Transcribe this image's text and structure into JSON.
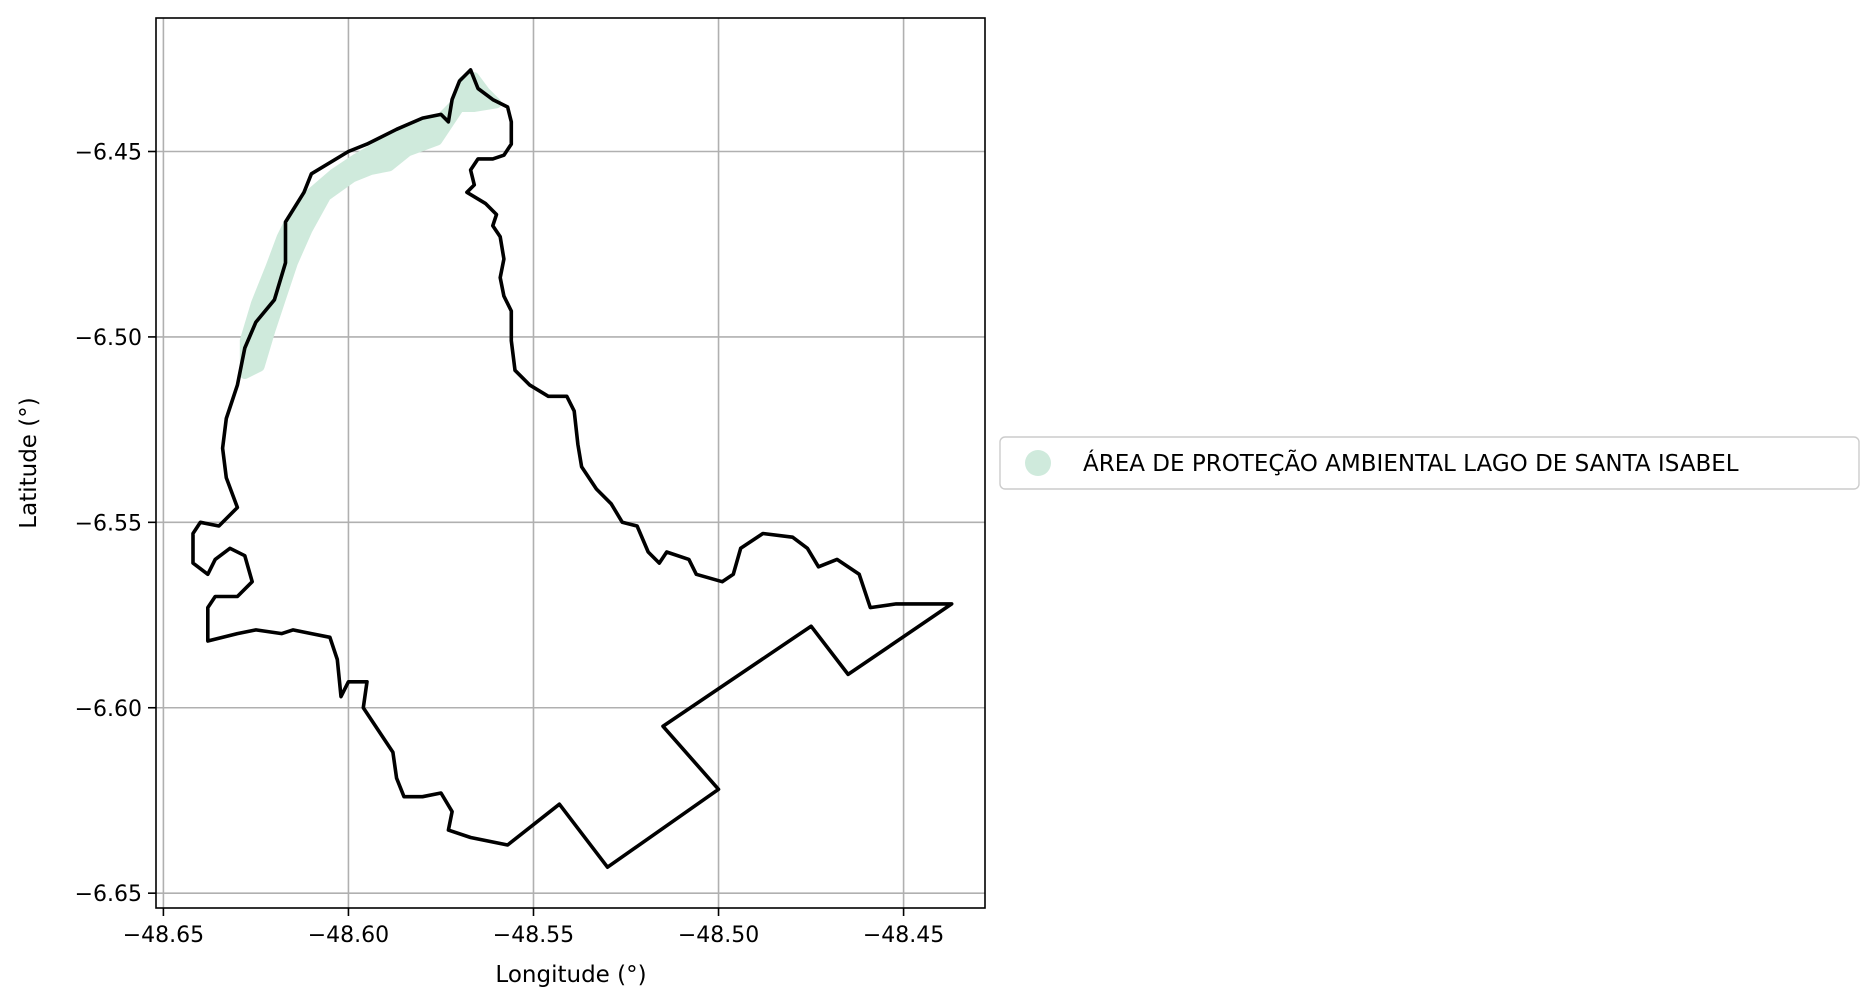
{
  "chart_data": {
    "type": "map",
    "xlabel": "Longitude (°)",
    "ylabel": "Latitude (°)",
    "xlim": [
      -48.652,
      -48.428
    ],
    "ylim": [
      -6.654,
      -6.414
    ],
    "x_ticks": [
      -48.65,
      -48.6,
      -48.55,
      -48.5,
      -48.45
    ],
    "x_tick_labels": [
      "−48.65",
      "−48.60",
      "−48.55",
      "−48.50",
      "−48.45"
    ],
    "y_ticks": [
      -6.45,
      -6.5,
      -6.55,
      -6.6,
      -6.65
    ],
    "y_tick_labels": [
      "−6.45",
      "−6.50",
      "−6.55",
      "−6.60",
      "−6.65"
    ],
    "grid": true,
    "legend": {
      "placement": "right",
      "entries": [
        {
          "label": "ÁREA DE PROTEÇÃO AMBIENTAL LAGO DE SANTA ISABEL",
          "color": "#cfeadc",
          "marker": "circle"
        }
      ]
    },
    "boundary": {
      "color": "#000000",
      "coordinates": [
        [
          -48.61,
          -6.456
        ],
        [
          -48.6,
          -6.45
        ],
        [
          -48.595,
          -6.448
        ],
        [
          -48.587,
          -6.444
        ],
        [
          -48.58,
          -6.441
        ],
        [
          -48.575,
          -6.44
        ],
        [
          -48.573,
          -6.442
        ],
        [
          -48.572,
          -6.436
        ],
        [
          -48.57,
          -6.431
        ],
        [
          -48.567,
          -6.428
        ],
        [
          -48.565,
          -6.433
        ],
        [
          -48.561,
          -6.436
        ],
        [
          -48.557,
          -6.438
        ],
        [
          -48.556,
          -6.442
        ],
        [
          -48.556,
          -6.448
        ],
        [
          -48.558,
          -6.451
        ],
        [
          -48.561,
          -6.452
        ],
        [
          -48.565,
          -6.452
        ],
        [
          -48.567,
          -6.455
        ],
        [
          -48.566,
          -6.459
        ],
        [
          -48.568,
          -6.461
        ],
        [
          -48.563,
          -6.464
        ],
        [
          -48.56,
          -6.467
        ],
        [
          -48.561,
          -6.47
        ],
        [
          -48.559,
          -6.473
        ],
        [
          -48.558,
          -6.479
        ],
        [
          -48.559,
          -6.484
        ],
        [
          -48.558,
          -6.489
        ],
        [
          -48.556,
          -6.493
        ],
        [
          -48.556,
          -6.501
        ],
        [
          -48.555,
          -6.509
        ],
        [
          -48.551,
          -6.513
        ],
        [
          -48.546,
          -6.516
        ],
        [
          -48.541,
          -6.516
        ],
        [
          -48.539,
          -6.52
        ],
        [
          -48.538,
          -6.529
        ],
        [
          -48.537,
          -6.535
        ],
        [
          -48.533,
          -6.541
        ],
        [
          -48.529,
          -6.545
        ],
        [
          -48.526,
          -6.55
        ],
        [
          -48.522,
          -6.551
        ],
        [
          -48.519,
          -6.558
        ],
        [
          -48.516,
          -6.561
        ],
        [
          -48.514,
          -6.558
        ],
        [
          -48.508,
          -6.56
        ],
        [
          -48.506,
          -6.564
        ],
        [
          -48.499,
          -6.566
        ],
        [
          -48.496,
          -6.564
        ],
        [
          -48.494,
          -6.557
        ],
        [
          -48.488,
          -6.553
        ],
        [
          -48.48,
          -6.554
        ],
        [
          -48.476,
          -6.557
        ],
        [
          -48.473,
          -6.562
        ],
        [
          -48.468,
          -6.56
        ],
        [
          -48.462,
          -6.564
        ],
        [
          -48.459,
          -6.573
        ],
        [
          -48.452,
          -6.572
        ],
        [
          -48.445,
          -6.572
        ],
        [
          -48.437,
          -6.572
        ],
        [
          -48.465,
          -6.591
        ],
        [
          -48.475,
          -6.578
        ],
        [
          -48.515,
          -6.605
        ],
        [
          -48.5,
          -6.622
        ],
        [
          -48.53,
          -6.643
        ],
        [
          -48.543,
          -6.626
        ],
        [
          -48.557,
          -6.637
        ],
        [
          -48.567,
          -6.635
        ],
        [
          -48.573,
          -6.633
        ],
        [
          -48.572,
          -6.628
        ],
        [
          -48.575,
          -6.623
        ],
        [
          -48.58,
          -6.624
        ],
        [
          -48.585,
          -6.624
        ],
        [
          -48.587,
          -6.619
        ],
        [
          -48.588,
          -6.612
        ],
        [
          -48.592,
          -6.606
        ],
        [
          -48.596,
          -6.6
        ],
        [
          -48.595,
          -6.593
        ],
        [
          -48.6,
          -6.593
        ],
        [
          -48.602,
          -6.597
        ],
        [
          -48.603,
          -6.587
        ],
        [
          -48.605,
          -6.581
        ],
        [
          -48.61,
          -6.58
        ],
        [
          -48.615,
          -6.579
        ],
        [
          -48.618,
          -6.58
        ],
        [
          -48.625,
          -6.579
        ],
        [
          -48.63,
          -6.58
        ],
        [
          -48.638,
          -6.582
        ],
        [
          -48.638,
          -6.573
        ],
        [
          -48.636,
          -6.57
        ],
        [
          -48.63,
          -6.57
        ],
        [
          -48.626,
          -6.566
        ],
        [
          -48.628,
          -6.559
        ],
        [
          -48.632,
          -6.557
        ],
        [
          -48.636,
          -6.56
        ],
        [
          -48.638,
          -6.564
        ],
        [
          -48.642,
          -6.561
        ],
        [
          -48.642,
          -6.553
        ],
        [
          -48.64,
          -6.55
        ],
        [
          -48.635,
          -6.551
        ],
        [
          -48.63,
          -6.546
        ],
        [
          -48.633,
          -6.538
        ],
        [
          -48.634,
          -6.53
        ],
        [
          -48.633,
          -6.522
        ],
        [
          -48.63,
          -6.513
        ],
        [
          -48.628,
          -6.503
        ],
        [
          -48.625,
          -6.496
        ],
        [
          -48.62,
          -6.49
        ],
        [
          -48.617,
          -6.48
        ],
        [
          -48.617,
          -6.469
        ],
        [
          -48.612,
          -6.461
        ],
        [
          -48.61,
          -6.456
        ]
      ]
    },
    "protected_area": {
      "color": "#cfeadc",
      "coordinates": [
        [
          -48.616,
          -6.469
        ],
        [
          -48.611,
          -6.462
        ],
        [
          -48.604,
          -6.456
        ],
        [
          -48.598,
          -6.452
        ],
        [
          -48.591,
          -6.448
        ],
        [
          -48.583,
          -6.444
        ],
        [
          -48.575,
          -6.441
        ],
        [
          -48.571,
          -6.437
        ],
        [
          -48.569,
          -6.431
        ],
        [
          -48.566,
          -6.43
        ],
        [
          -48.563,
          -6.434
        ],
        [
          -48.56,
          -6.437
        ],
        [
          -48.566,
          -6.438
        ],
        [
          -48.57,
          -6.438
        ],
        [
          -48.572,
          -6.441
        ],
        [
          -48.576,
          -6.447
        ],
        [
          -48.584,
          -6.45
        ],
        [
          -48.589,
          -6.454
        ],
        [
          -48.594,
          -6.455
        ],
        [
          -48.599,
          -6.457
        ],
        [
          -48.606,
          -6.462
        ],
        [
          -48.611,
          -6.471
        ],
        [
          -48.615,
          -6.48
        ],
        [
          -48.618,
          -6.489
        ],
        [
          -48.621,
          -6.498
        ],
        [
          -48.624,
          -6.508
        ],
        [
          -48.628,
          -6.51
        ],
        [
          -48.628,
          -6.501
        ],
        [
          -48.625,
          -6.491
        ],
        [
          -48.621,
          -6.481
        ],
        [
          -48.618,
          -6.473
        ],
        [
          -48.616,
          -6.469
        ]
      ]
    }
  }
}
